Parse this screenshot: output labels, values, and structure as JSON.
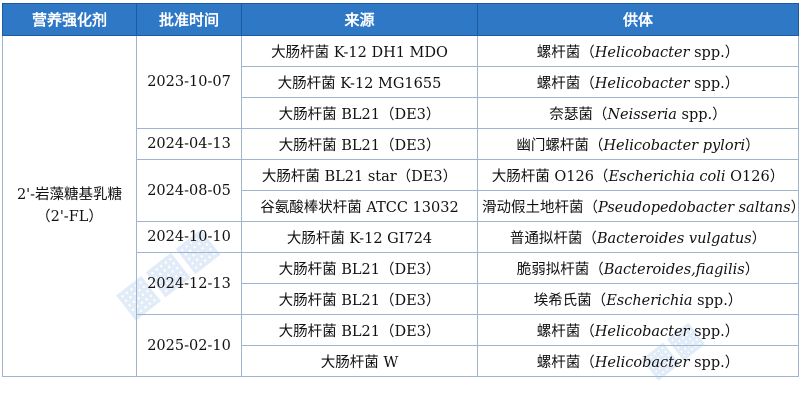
{
  "header": [
    "营养强化剂",
    "批准时间",
    "来源",
    "供体"
  ],
  "nutrient": {
    "line1": "2'-岩藻糖基乳糖",
    "line2": "（2'-FL）"
  },
  "groups": [
    {
      "date": "2023-10-07",
      "rows": [
        {
          "source": "大肠杆菌  K-12 DH1 MDO",
          "host_cn": "螺杆菌（",
          "host_latin": "Helicobacter",
          "host_tail": " spp.）"
        },
        {
          "source": "大肠杆菌  K-12 MG1655",
          "host_cn": "螺杆菌（",
          "host_latin": "Helicobacter",
          "host_tail": " spp.）"
        },
        {
          "source": "大肠杆菌  BL21（DE3）",
          "host_cn": "奈瑟菌（",
          "host_latin": "Neisseria",
          "host_tail": " spp.）"
        }
      ]
    },
    {
      "date": "2024-04-13",
      "rows": [
        {
          "source": "大肠杆菌  BL21（DE3）",
          "host_cn": "幽门螺杆菌（",
          "host_latin": "Helicobacter pylori",
          "host_tail": "）"
        }
      ]
    },
    {
      "date": "2024-08-05",
      "rows": [
        {
          "source": "大肠杆菌  BL21 star（DE3）",
          "host_cn": "大肠杆菌 O126（",
          "host_latin": "Escherichia coli",
          "host_tail": " O126）"
        },
        {
          "source": "谷氨酸棒状杆菌  ATCC 13032",
          "host_cn": "滑动假土地杆菌（",
          "host_latin": "Pseudopedobacter saltans",
          "host_tail": "）"
        }
      ]
    },
    {
      "date": "2024-10-10",
      "rows": [
        {
          "source": "大肠杆菌  K-12 GI724",
          "host_cn": "普通拟杆菌（",
          "host_latin": "Bacteroides vulgatus",
          "host_tail": "）"
        }
      ]
    },
    {
      "date": "2024-12-13",
      "rows": [
        {
          "source": "大肠杆菌  BL21（DE3）",
          "host_cn": "脆弱拟杆菌（",
          "host_latin": "Bacteroides,fiagilis",
          "host_tail": "）"
        },
        {
          "source": "大肠杆菌  BL21（DE3）",
          "host_cn": "埃希氏菌（",
          "host_latin": "Escherichia",
          "host_tail": " spp.）"
        }
      ]
    },
    {
      "date": "2025-02-10",
      "rows": [
        {
          "source": "大肠杆菌  BL21（DE3）",
          "host_cn": "螺杆菌（",
          "host_latin": "Helicobacter",
          "host_tail": " spp.）"
        },
        {
          "source": "大肠杆菌  W",
          "host_cn": "螺杆菌（",
          "host_latin": "Helicobacter",
          "host_tail": " spp.）"
        }
      ]
    }
  ],
  "colors": {
    "header_bg": "#2f78c6",
    "header_text": "#ffffff",
    "border": "#9fb4cf",
    "watermark": "#78aae1"
  },
  "watermark_icon": "mascot-watermark-icon"
}
